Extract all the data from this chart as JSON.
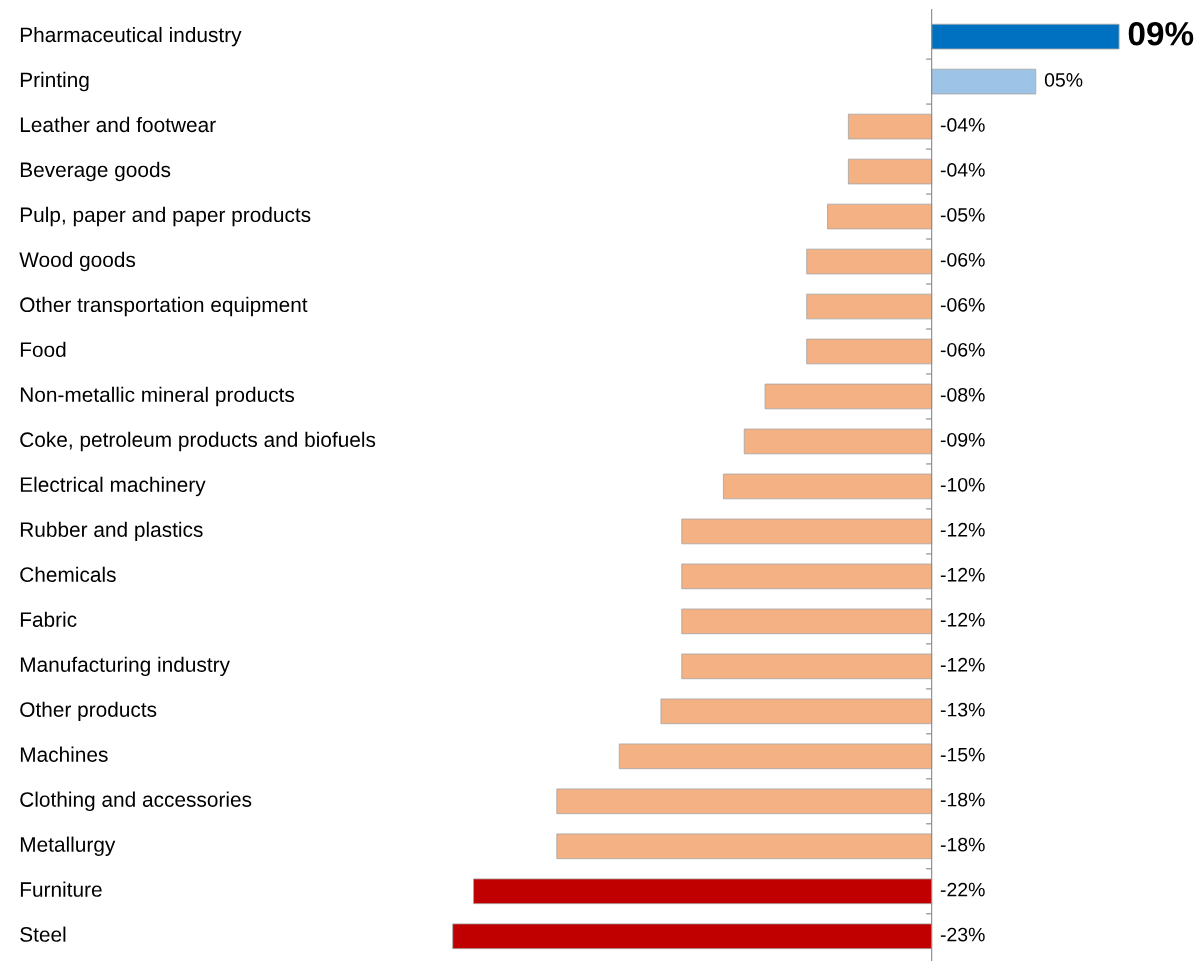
{
  "chart_data": {
    "type": "bar",
    "orientation": "horizontal",
    "categories": [
      "Pharmaceutical industry",
      "Printing",
      "Leather and footwear",
      "Beverage goods",
      "Pulp, paper and paper products",
      "Wood goods",
      "Other transportation equipment",
      "Food",
      "Non-metallic mineral products",
      "Coke, petroleum products and biofuels",
      "Electrical machinery",
      "Rubber and plastics",
      "Chemicals",
      "Fabric",
      "Manufacturing industry",
      "Other products",
      "Machines",
      "Clothing and accessories",
      "Metallurgy",
      "Furniture",
      "Steel"
    ],
    "values": [
      9,
      5,
      -4,
      -4,
      -5,
      -6,
      -6,
      -6,
      -8,
      -9,
      -10,
      -12,
      -12,
      -12,
      -12,
      -13,
      -15,
      -18,
      -18,
      -22,
      -23
    ],
    "value_labels": [
      "09%",
      "05%",
      "-04%",
      "-04%",
      "-05%",
      "-06%",
      "-06%",
      "-06%",
      "-08%",
      "-09%",
      "-10%",
      "-12%",
      "-12%",
      "-12%",
      "-12%",
      "-13%",
      "-15%",
      "-18%",
      "-18%",
      "-22%",
      "-23%"
    ],
    "colors": [
      "#0070c0",
      "#9dc3e6",
      "#f4b183",
      "#f4b183",
      "#f4b183",
      "#f4b183",
      "#f4b183",
      "#f4b183",
      "#f4b183",
      "#f4b183",
      "#f4b183",
      "#f4b183",
      "#f4b183",
      "#f4b183",
      "#f4b183",
      "#f4b183",
      "#f4b183",
      "#f4b183",
      "#f4b183",
      "#c00000",
      "#c00000"
    ],
    "grid": false,
    "legend": false
  }
}
